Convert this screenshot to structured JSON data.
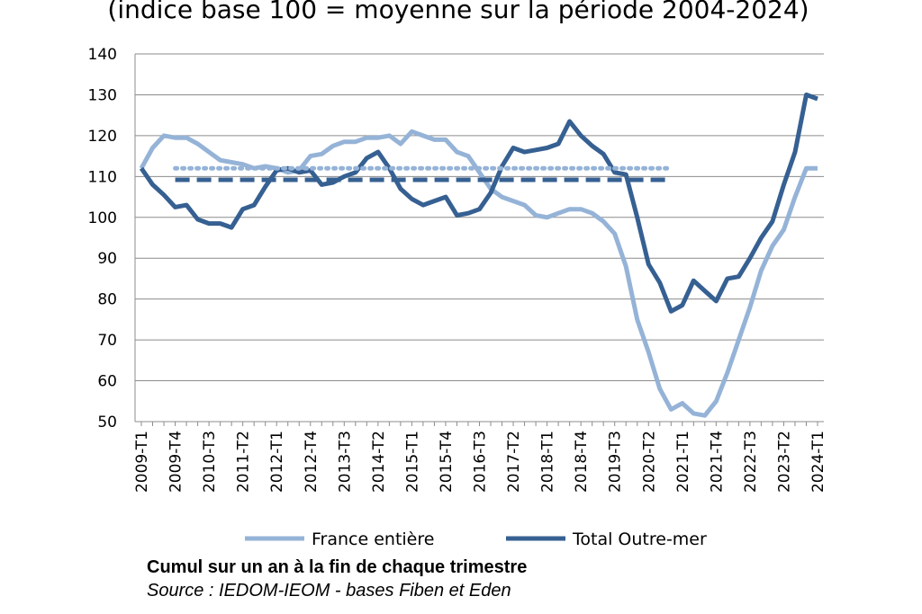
{
  "chart_data": {
    "type": "line",
    "title": "(indice base 100 = moyenne sur la période 2004-2024)",
    "ylim": [
      50,
      140
    ],
    "y_ticks": [
      50,
      60,
      70,
      80,
      90,
      100,
      110,
      120,
      130,
      140
    ],
    "grid": "horizontal",
    "legend_position": "bottom",
    "x_ticks": [
      "2009-T1",
      "2009-T4",
      "2010-T3",
      "2011-T2",
      "2012-T1",
      "2012-T4",
      "2013-T3",
      "2014-T2",
      "2015-T1",
      "2015-T4",
      "2016-T3",
      "2017-T2",
      "2018-T1",
      "2018-T4",
      "2019-T3",
      "2020-T2",
      "2021-T1",
      "2021-T4",
      "2022-T3",
      "2023-T2",
      "2024-T1"
    ],
    "categories": [
      "2009-T1",
      "2009-T2",
      "2009-T3",
      "2009-T4",
      "2010-T1",
      "2010-T2",
      "2010-T3",
      "2010-T4",
      "2011-T1",
      "2011-T2",
      "2011-T3",
      "2011-T4",
      "2012-T1",
      "2012-T2",
      "2012-T3",
      "2012-T4",
      "2013-T1",
      "2013-T2",
      "2013-T3",
      "2013-T4",
      "2014-T1",
      "2014-T2",
      "2014-T3",
      "2014-T4",
      "2015-T1",
      "2015-T2",
      "2015-T3",
      "2015-T4",
      "2016-T1",
      "2016-T2",
      "2016-T3",
      "2016-T4",
      "2017-T1",
      "2017-T2",
      "2017-T3",
      "2017-T4",
      "2018-T1",
      "2018-T2",
      "2018-T3",
      "2018-T4",
      "2019-T1",
      "2019-T2",
      "2019-T3",
      "2019-T4",
      "2020-T1",
      "2020-T2",
      "2020-T3",
      "2020-T4",
      "2021-T1",
      "2021-T2",
      "2021-T3",
      "2021-T4",
      "2022-T1",
      "2022-T2",
      "2022-T3",
      "2022-T4",
      "2023-T1",
      "2023-T2",
      "2023-T3",
      "2023-T4",
      "2024-T1"
    ],
    "series": [
      {
        "name": "France entière",
        "color": "#95b3d7",
        "style": "solid",
        "values": [
          112,
          117,
          120,
          119.5,
          119.5,
          118,
          116,
          114,
          113.5,
          113,
          112,
          112.5,
          112,
          111,
          111.5,
          115,
          115.5,
          117.5,
          118.5,
          118.5,
          119.5,
          119.5,
          120,
          118,
          121,
          120,
          119,
          119,
          116,
          115,
          111,
          107,
          105,
          104,
          103,
          100.5,
          100,
          101,
          102,
          102,
          101,
          99,
          96,
          88,
          75,
          67,
          58,
          53,
          54.5,
          52,
          51.5,
          55,
          62,
          70,
          78,
          87,
          93,
          97,
          105,
          112,
          112
        ]
      },
      {
        "name": "Total Outre-mer",
        "color": "#366092",
        "style": "solid",
        "values": [
          112,
          108,
          105.5,
          102.5,
          103,
          99.5,
          98.5,
          98.5,
          97.5,
          102,
          103,
          107.5,
          111.5,
          112,
          111,
          111.5,
          108,
          108.5,
          110,
          111,
          114.5,
          116,
          112,
          107,
          104.5,
          103,
          104,
          105,
          100.5,
          101,
          102,
          106,
          112.5,
          117,
          116,
          116.5,
          117,
          118,
          123.5,
          120,
          117.5,
          115.5,
          111,
          110.5,
          100,
          88.5,
          84,
          77,
          78.5,
          84.5,
          82,
          79.5,
          85,
          85.5,
          90,
          95,
          99,
          108,
          116,
          130,
          129
        ]
      },
      {
        "name": "",
        "color": "#95b3d7",
        "style": "dotted",
        "values": [
          null,
          null,
          null,
          112,
          112,
          112,
          112,
          112,
          112,
          112,
          112,
          112,
          112,
          112,
          112,
          112,
          112,
          112,
          112,
          112,
          112,
          112,
          112,
          112,
          112,
          112,
          112,
          112,
          112,
          112,
          112,
          112,
          112,
          112,
          112,
          112,
          112,
          112,
          112,
          112,
          112,
          112,
          112,
          112,
          112,
          112,
          112,
          112,
          null,
          null,
          null,
          null,
          null,
          null,
          null,
          null,
          null,
          null,
          null,
          null,
          null
        ]
      },
      {
        "name": "",
        "color": "#366092",
        "style": "dashed",
        "values": [
          null,
          null,
          null,
          109.2,
          109.2,
          109.2,
          109.2,
          109.2,
          109.2,
          109.2,
          109.2,
          109.2,
          109.2,
          109.2,
          109.2,
          109.2,
          109.2,
          109.2,
          109.2,
          109.2,
          109.2,
          109.2,
          109.2,
          109.2,
          109.2,
          109.2,
          109.2,
          109.2,
          109.2,
          109.2,
          109.2,
          109.2,
          109.2,
          109.2,
          109.2,
          109.2,
          109.2,
          109.2,
          109.2,
          109.2,
          109.2,
          109.2,
          109.2,
          109.2,
          109.2,
          109.2,
          109.2,
          109.2,
          null,
          null,
          null,
          null,
          null,
          null,
          null,
          null,
          null,
          null,
          null,
          null,
          null
        ]
      }
    ]
  },
  "footnote": "Cumul sur un an à la fin de chaque trimestre",
  "source": "Source : IEDOM-IEOM - bases Fiben et Eden"
}
